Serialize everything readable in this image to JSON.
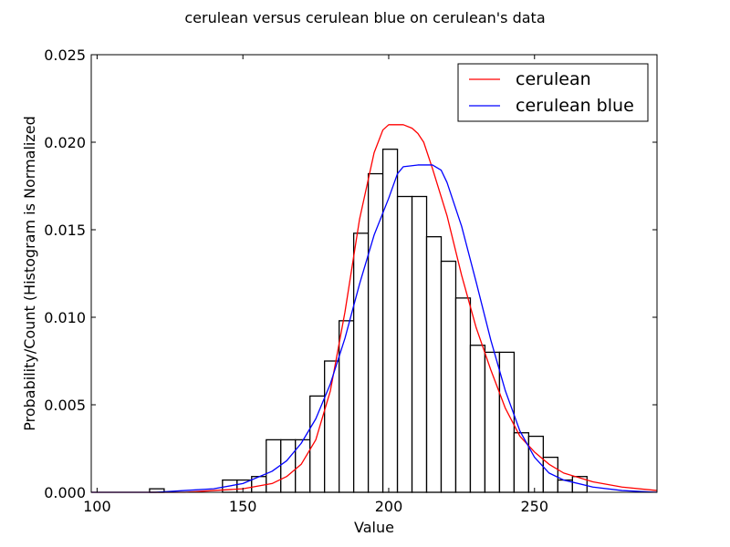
{
  "chart_data": {
    "type": "histogram",
    "title": "cerulean versus cerulean blue on cerulean's data",
    "xlabel": "Value",
    "ylabel": "Probability/Count (Histogram is Normalized",
    "xlim": [
      98,
      292
    ],
    "ylim": [
      0,
      0.025
    ],
    "x_ticks": [
      100,
      150,
      200,
      250
    ],
    "x_tick_labels": [
      "100",
      "150",
      "200",
      "250"
    ],
    "y_ticks": [
      0,
      0.005,
      0.01,
      0.015,
      0.02,
      0.025
    ],
    "y_tick_labels": [
      "0.000",
      "0.005",
      "0.010",
      "0.015",
      "0.020",
      "0.025"
    ],
    "grid": false,
    "legend_position": "top-right",
    "histogram": {
      "bin_edges": [
        118,
        123,
        143,
        148,
        153,
        158,
        163,
        168,
        173,
        178,
        183,
        188,
        193,
        198,
        203,
        208,
        213,
        218,
        223,
        228,
        233,
        238,
        243,
        248,
        253,
        258,
        263,
        268,
        273
      ],
      "densities": [
        0.0002,
        0,
        0.0007,
        0.0007,
        0.0009,
        0.003,
        0.003,
        0.003,
        0.0055,
        0.0075,
        0.0098,
        0.0148,
        0.0182,
        0.0196,
        0.0169,
        0.0169,
        0.0146,
        0.0132,
        0.0111,
        0.0084,
        0.008,
        0.008,
        0.0034,
        0.0032,
        0.002,
        0.0007,
        0.0009,
        0
      ],
      "edge_color": "#000000",
      "fill_color": "#ffffff"
    },
    "series": [
      {
        "name": "cerulean",
        "color": "#ff0000",
        "x": [
          98,
          110,
          120,
          130,
          140,
          150,
          160,
          165,
          170,
          175,
          180,
          185,
          190,
          195,
          198,
          200,
          202,
          205,
          208,
          210,
          212,
          215,
          220,
          225,
          230,
          235,
          240,
          245,
          250,
          255,
          260,
          270,
          280,
          292
        ],
        "y": [
          0.0,
          0.0,
          0.0,
          0.0,
          0.0001,
          0.0002,
          0.0005,
          0.0009,
          0.0016,
          0.003,
          0.0058,
          0.0103,
          0.0156,
          0.0194,
          0.0207,
          0.021,
          0.021,
          0.021,
          0.0208,
          0.0205,
          0.02,
          0.0185,
          0.0158,
          0.0124,
          0.0094,
          0.007,
          0.0048,
          0.0032,
          0.0023,
          0.0016,
          0.0011,
          0.0006,
          0.0003,
          0.0001
        ]
      },
      {
        "name": "cerulean blue",
        "color": "#0000ff",
        "x": [
          98,
          110,
          120,
          130,
          140,
          150,
          160,
          165,
          170,
          175,
          180,
          185,
          190,
          195,
          200,
          203,
          205,
          210,
          215,
          218,
          220,
          225,
          230,
          235,
          240,
          245,
          250,
          255,
          260,
          270,
          280,
          292
        ],
        "y": [
          0.0,
          0.0,
          0.0,
          0.0001,
          0.0002,
          0.0005,
          0.0012,
          0.0018,
          0.0028,
          0.0042,
          0.0062,
          0.0088,
          0.0119,
          0.0147,
          0.0168,
          0.0182,
          0.0186,
          0.0187,
          0.0187,
          0.0184,
          0.0177,
          0.0152,
          0.012,
          0.0087,
          0.0058,
          0.0035,
          0.002,
          0.0011,
          0.0007,
          0.0003,
          0.0001,
          0.0
        ]
      }
    ]
  }
}
